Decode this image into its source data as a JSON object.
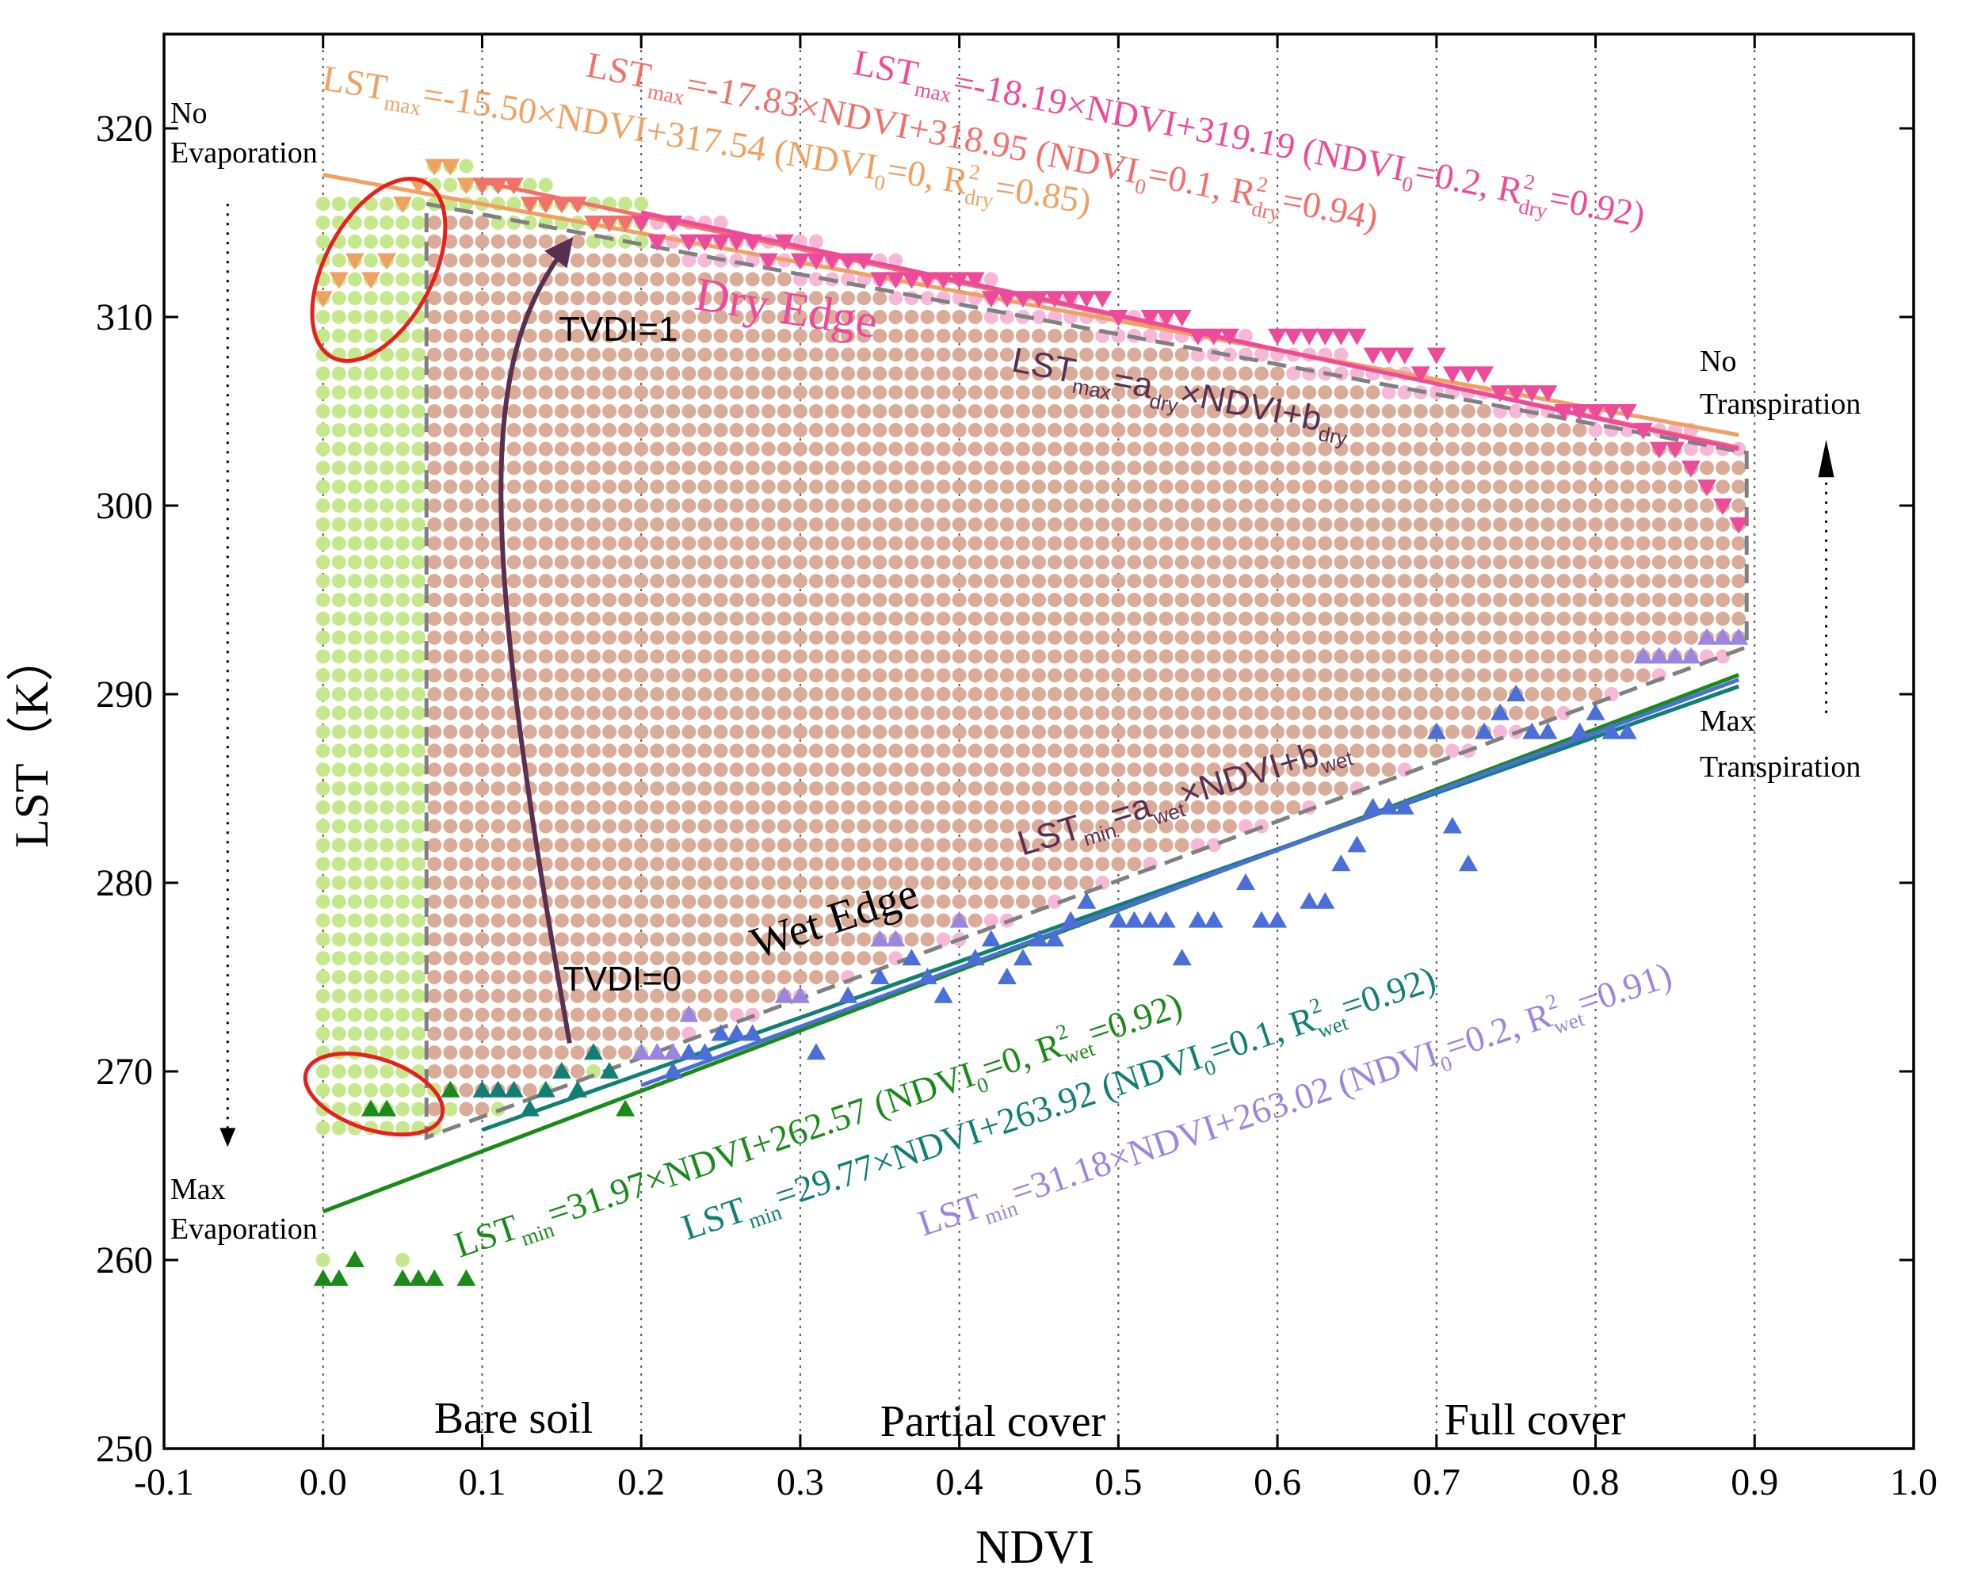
{
  "chart_data": {
    "type": "scatter",
    "title": "",
    "xlabel": "NDVI",
    "ylabel": "LST（K）",
    "xlim": [
      -0.1,
      1.0
    ],
    "ylim": [
      250,
      325
    ],
    "xticks": [
      -0.1,
      0.0,
      0.1,
      0.2,
      0.3,
      0.4,
      0.5,
      0.6,
      0.7,
      0.8,
      0.9,
      1.0
    ],
    "xtick_labels": [
      "-0.1",
      "0.0",
      "0.1",
      "0.2",
      "0.3",
      "0.4",
      "0.5",
      "0.6",
      "0.7",
      "0.8",
      "0.9",
      "1.0"
    ],
    "yticks": [
      250,
      260,
      270,
      280,
      290,
      300,
      310,
      320
    ],
    "ytick_labels": [
      "250",
      "260",
      "270",
      "280",
      "290",
      "300",
      "310",
      "320"
    ],
    "vertical_gridlines_at": [
      0.0,
      0.1,
      0.2,
      0.3,
      0.4,
      0.5,
      0.6,
      0.7,
      0.8,
      0.9
    ],
    "colors": {
      "green_points": "#c5e88c",
      "pink_region": "#f7b7d6",
      "tan_region": "#d9ab98",
      "orange": "#f0a060",
      "red": "#f2706a",
      "magenta": "#ee4a9a",
      "green": "#1a8a1a",
      "teal": "#127f74",
      "blue": "#4a6fd8",
      "purple": "#9a86e0",
      "arrow": "#5a3050",
      "ellipse": "#e8201c",
      "dashed": "#808080"
    },
    "dry_edges": [
      {
        "name": "NDVI0=0",
        "slope": -15.5,
        "intercept": 317.54,
        "x_range": [
          0.0,
          0.89
        ],
        "color": "orange",
        "r2": 0.85
      },
      {
        "name": "NDVI0=0.1",
        "slope": -17.83,
        "intercept": 318.95,
        "x_range": [
          0.1,
          0.89
        ],
        "color": "red",
        "r2": 0.94
      },
      {
        "name": "NDVI0=0.2",
        "slope": -18.19,
        "intercept": 319.19,
        "x_range": [
          0.2,
          0.89
        ],
        "color": "magenta",
        "r2": 0.92
      }
    ],
    "wet_edges": [
      {
        "name": "NDVI0=0",
        "slope": 31.97,
        "intercept": 262.57,
        "x_range": [
          0.0,
          0.89
        ],
        "color": "green",
        "r2": 0.92
      },
      {
        "name": "NDVI0=0.1",
        "slope": 29.77,
        "intercept": 263.92,
        "x_range": [
          0.1,
          0.89
        ],
        "color": "teal",
        "r2": 0.92
      },
      {
        "name": "NDVI0=0.2",
        "slope": 31.18,
        "intercept": 263.02,
        "x_range": [
          0.2,
          0.89
        ],
        "color": "blue",
        "r2": 0.91
      }
    ],
    "triangle_region_dashed": [
      [
        0.065,
        316
      ],
      [
        0.895,
        302.8
      ],
      [
        0.895,
        292.5
      ],
      [
        0.065,
        266.5
      ]
    ],
    "dry_points": [
      {
        "x": 0.0,
        "y": 311,
        "c": "orange"
      },
      {
        "x": 0.01,
        "y": 312,
        "c": "orange"
      },
      {
        "x": 0.02,
        "y": 313,
        "c": "orange"
      },
      {
        "x": 0.03,
        "y": 312,
        "c": "orange"
      },
      {
        "x": 0.04,
        "y": 313,
        "c": "orange"
      },
      {
        "x": 0.05,
        "y": 316,
        "c": "orange"
      },
      {
        "x": 0.06,
        "y": 317,
        "c": "orange"
      },
      {
        "x": 0.07,
        "y": 318,
        "c": "orange"
      },
      {
        "x": 0.08,
        "y": 318,
        "c": "orange"
      },
      {
        "x": 0.09,
        "y": 317,
        "c": "orange"
      },
      {
        "x": 0.1,
        "y": 317,
        "c": "red"
      },
      {
        "x": 0.11,
        "y": 317,
        "c": "red"
      },
      {
        "x": 0.12,
        "y": 317,
        "c": "red"
      },
      {
        "x": 0.13,
        "y": 316,
        "c": "red"
      },
      {
        "x": 0.14,
        "y": 316,
        "c": "red"
      },
      {
        "x": 0.15,
        "y": 316,
        "c": "red"
      },
      {
        "x": 0.16,
        "y": 316,
        "c": "red"
      },
      {
        "x": 0.17,
        "y": 315,
        "c": "red"
      },
      {
        "x": 0.18,
        "y": 315,
        "c": "red"
      },
      {
        "x": 0.19,
        "y": 315,
        "c": "red"
      },
      {
        "x": 0.2,
        "y": 315,
        "c": "magenta"
      },
      {
        "x": 0.21,
        "y": 314,
        "c": "magenta"
      },
      {
        "x": 0.22,
        "y": 315,
        "c": "magenta"
      },
      {
        "x": 0.23,
        "y": 314,
        "c": "magenta"
      },
      {
        "x": 0.24,
        "y": 314,
        "c": "magenta"
      },
      {
        "x": 0.25,
        "y": 314,
        "c": "magenta"
      },
      {
        "x": 0.26,
        "y": 314,
        "c": "magenta"
      },
      {
        "x": 0.27,
        "y": 314,
        "c": "magenta"
      },
      {
        "x": 0.28,
        "y": 313,
        "c": "magenta"
      },
      {
        "x": 0.29,
        "y": 314,
        "c": "magenta"
      },
      {
        "x": 0.3,
        "y": 313,
        "c": "magenta"
      },
      {
        "x": 0.31,
        "y": 313,
        "c": "magenta"
      },
      {
        "x": 0.32,
        "y": 313,
        "c": "magenta"
      },
      {
        "x": 0.33,
        "y": 313,
        "c": "magenta"
      },
      {
        "x": 0.34,
        "y": 313,
        "c": "magenta"
      },
      {
        "x": 0.35,
        "y": 312,
        "c": "magenta"
      },
      {
        "x": 0.36,
        "y": 312,
        "c": "magenta"
      },
      {
        "x": 0.37,
        "y": 312,
        "c": "magenta"
      },
      {
        "x": 0.38,
        "y": 312,
        "c": "magenta"
      },
      {
        "x": 0.39,
        "y": 312,
        "c": "magenta"
      },
      {
        "x": 0.4,
        "y": 312,
        "c": "magenta"
      },
      {
        "x": 0.41,
        "y": 312,
        "c": "magenta"
      },
      {
        "x": 0.42,
        "y": 311,
        "c": "magenta"
      },
      {
        "x": 0.43,
        "y": 311,
        "c": "magenta"
      },
      {
        "x": 0.44,
        "y": 311,
        "c": "magenta"
      },
      {
        "x": 0.45,
        "y": 311,
        "c": "magenta"
      },
      {
        "x": 0.46,
        "y": 311,
        "c": "magenta"
      },
      {
        "x": 0.47,
        "y": 311,
        "c": "magenta"
      },
      {
        "x": 0.48,
        "y": 311,
        "c": "magenta"
      },
      {
        "x": 0.49,
        "y": 311,
        "c": "magenta"
      },
      {
        "x": 0.5,
        "y": 310,
        "c": "magenta"
      },
      {
        "x": 0.52,
        "y": 310,
        "c": "magenta"
      },
      {
        "x": 0.53,
        "y": 310,
        "c": "magenta"
      },
      {
        "x": 0.54,
        "y": 310,
        "c": "magenta"
      },
      {
        "x": 0.55,
        "y": 309,
        "c": "magenta"
      },
      {
        "x": 0.56,
        "y": 309,
        "c": "magenta"
      },
      {
        "x": 0.57,
        "y": 309,
        "c": "magenta"
      },
      {
        "x": 0.6,
        "y": 309,
        "c": "magenta"
      },
      {
        "x": 0.61,
        "y": 309,
        "c": "magenta"
      },
      {
        "x": 0.62,
        "y": 309,
        "c": "magenta"
      },
      {
        "x": 0.63,
        "y": 309,
        "c": "magenta"
      },
      {
        "x": 0.64,
        "y": 309,
        "c": "magenta"
      },
      {
        "x": 0.65,
        "y": 309,
        "c": "magenta"
      },
      {
        "x": 0.66,
        "y": 308,
        "c": "magenta"
      },
      {
        "x": 0.67,
        "y": 308,
        "c": "magenta"
      },
      {
        "x": 0.68,
        "y": 308,
        "c": "magenta"
      },
      {
        "x": 0.69,
        "y": 307,
        "c": "magenta"
      },
      {
        "x": 0.7,
        "y": 308,
        "c": "magenta"
      },
      {
        "x": 0.71,
        "y": 307,
        "c": "magenta"
      },
      {
        "x": 0.72,
        "y": 307,
        "c": "magenta"
      },
      {
        "x": 0.73,
        "y": 307,
        "c": "magenta"
      },
      {
        "x": 0.74,
        "y": 306,
        "c": "magenta"
      },
      {
        "x": 0.75,
        "y": 306,
        "c": "magenta"
      },
      {
        "x": 0.76,
        "y": 306,
        "c": "magenta"
      },
      {
        "x": 0.77,
        "y": 306,
        "c": "magenta"
      },
      {
        "x": 0.78,
        "y": 305,
        "c": "magenta"
      },
      {
        "x": 0.79,
        "y": 305,
        "c": "magenta"
      },
      {
        "x": 0.8,
        "y": 305,
        "c": "magenta"
      },
      {
        "x": 0.81,
        "y": 305,
        "c": "magenta"
      },
      {
        "x": 0.82,
        "y": 305,
        "c": "magenta"
      },
      {
        "x": 0.83,
        "y": 304,
        "c": "magenta"
      },
      {
        "x": 0.84,
        "y": 303,
        "c": "magenta"
      },
      {
        "x": 0.85,
        "y": 303,
        "c": "magenta"
      },
      {
        "x": 0.86,
        "y": 302,
        "c": "magenta"
      },
      {
        "x": 0.87,
        "y": 301,
        "c": "magenta"
      },
      {
        "x": 0.88,
        "y": 300,
        "c": "magenta"
      },
      {
        "x": 0.89,
        "y": 299,
        "c": "magenta"
      }
    ],
    "wet_points": [
      {
        "x": 0.0,
        "y": 259,
        "c": "green"
      },
      {
        "x": 0.01,
        "y": 259,
        "c": "green"
      },
      {
        "x": 0.02,
        "y": 260,
        "c": "green"
      },
      {
        "x": 0.03,
        "y": 268,
        "c": "green"
      },
      {
        "x": 0.04,
        "y": 268,
        "c": "green"
      },
      {
        "x": 0.05,
        "y": 259,
        "c": "green"
      },
      {
        "x": 0.06,
        "y": 259,
        "c": "green"
      },
      {
        "x": 0.07,
        "y": 259,
        "c": "green"
      },
      {
        "x": 0.08,
        "y": 269,
        "c": "green"
      },
      {
        "x": 0.09,
        "y": 259,
        "c": "green"
      },
      {
        "x": 0.19,
        "y": 268,
        "c": "green"
      },
      {
        "x": 0.1,
        "y": 269,
        "c": "teal"
      },
      {
        "x": 0.11,
        "y": 269,
        "c": "teal"
      },
      {
        "x": 0.12,
        "y": 269,
        "c": "teal"
      },
      {
        "x": 0.13,
        "y": 268,
        "c": "teal"
      },
      {
        "x": 0.14,
        "y": 269,
        "c": "teal"
      },
      {
        "x": 0.15,
        "y": 270,
        "c": "teal"
      },
      {
        "x": 0.16,
        "y": 269,
        "c": "teal"
      },
      {
        "x": 0.17,
        "y": 271,
        "c": "teal"
      },
      {
        "x": 0.18,
        "y": 270,
        "c": "teal"
      },
      {
        "x": 0.2,
        "y": 271,
        "c": "purple"
      },
      {
        "x": 0.21,
        "y": 271,
        "c": "purple"
      },
      {
        "x": 0.22,
        "y": 271,
        "c": "purple"
      },
      {
        "x": 0.23,
        "y": 273,
        "c": "purple"
      },
      {
        "x": 0.29,
        "y": 274,
        "c": "purple"
      },
      {
        "x": 0.3,
        "y": 274,
        "c": "purple"
      },
      {
        "x": 0.35,
        "y": 277,
        "c": "purple"
      },
      {
        "x": 0.36,
        "y": 277,
        "c": "purple"
      },
      {
        "x": 0.4,
        "y": 278,
        "c": "purple"
      },
      {
        "x": 0.83,
        "y": 292,
        "c": "purple"
      },
      {
        "x": 0.84,
        "y": 292,
        "c": "purple"
      },
      {
        "x": 0.85,
        "y": 292,
        "c": "purple"
      },
      {
        "x": 0.86,
        "y": 292,
        "c": "purple"
      },
      {
        "x": 0.87,
        "y": 293,
        "c": "purple"
      },
      {
        "x": 0.88,
        "y": 293,
        "c": "purple"
      },
      {
        "x": 0.89,
        "y": 293,
        "c": "purple"
      },
      {
        "x": 0.22,
        "y": 270,
        "c": "blue"
      },
      {
        "x": 0.23,
        "y": 271,
        "c": "blue"
      },
      {
        "x": 0.24,
        "y": 271,
        "c": "blue"
      },
      {
        "x": 0.25,
        "y": 272,
        "c": "blue"
      },
      {
        "x": 0.26,
        "y": 272,
        "c": "blue"
      },
      {
        "x": 0.27,
        "y": 272,
        "c": "blue"
      },
      {
        "x": 0.31,
        "y": 271,
        "c": "blue"
      },
      {
        "x": 0.33,
        "y": 274,
        "c": "blue"
      },
      {
        "x": 0.35,
        "y": 275,
        "c": "blue"
      },
      {
        "x": 0.37,
        "y": 276,
        "c": "blue"
      },
      {
        "x": 0.38,
        "y": 275,
        "c": "blue"
      },
      {
        "x": 0.39,
        "y": 274,
        "c": "blue"
      },
      {
        "x": 0.41,
        "y": 276,
        "c": "blue"
      },
      {
        "x": 0.42,
        "y": 277,
        "c": "blue"
      },
      {
        "x": 0.43,
        "y": 275,
        "c": "blue"
      },
      {
        "x": 0.44,
        "y": 276,
        "c": "blue"
      },
      {
        "x": 0.45,
        "y": 277,
        "c": "blue"
      },
      {
        "x": 0.46,
        "y": 277,
        "c": "blue"
      },
      {
        "x": 0.47,
        "y": 278,
        "c": "blue"
      },
      {
        "x": 0.48,
        "y": 279,
        "c": "blue"
      },
      {
        "x": 0.5,
        "y": 278,
        "c": "blue"
      },
      {
        "x": 0.51,
        "y": 278,
        "c": "blue"
      },
      {
        "x": 0.52,
        "y": 278,
        "c": "blue"
      },
      {
        "x": 0.53,
        "y": 278,
        "c": "blue"
      },
      {
        "x": 0.54,
        "y": 276,
        "c": "blue"
      },
      {
        "x": 0.55,
        "y": 278,
        "c": "blue"
      },
      {
        "x": 0.56,
        "y": 278,
        "c": "blue"
      },
      {
        "x": 0.58,
        "y": 280,
        "c": "blue"
      },
      {
        "x": 0.59,
        "y": 278,
        "c": "blue"
      },
      {
        "x": 0.6,
        "y": 278,
        "c": "blue"
      },
      {
        "x": 0.62,
        "y": 279,
        "c": "blue"
      },
      {
        "x": 0.63,
        "y": 279,
        "c": "blue"
      },
      {
        "x": 0.64,
        "y": 281,
        "c": "blue"
      },
      {
        "x": 0.65,
        "y": 282,
        "c": "blue"
      },
      {
        "x": 0.66,
        "y": 284,
        "c": "blue"
      },
      {
        "x": 0.67,
        "y": 284,
        "c": "blue"
      },
      {
        "x": 0.68,
        "y": 284,
        "c": "blue"
      },
      {
        "x": 0.7,
        "y": 288,
        "c": "blue"
      },
      {
        "x": 0.71,
        "y": 283,
        "c": "blue"
      },
      {
        "x": 0.72,
        "y": 281,
        "c": "blue"
      },
      {
        "x": 0.73,
        "y": 288,
        "c": "blue"
      },
      {
        "x": 0.74,
        "y": 289,
        "c": "blue"
      },
      {
        "x": 0.75,
        "y": 290,
        "c": "blue"
      },
      {
        "x": 0.76,
        "y": 288,
        "c": "blue"
      },
      {
        "x": 0.77,
        "y": 288,
        "c": "blue"
      },
      {
        "x": 0.79,
        "y": 288,
        "c": "blue"
      },
      {
        "x": 0.8,
        "y": 289,
        "c": "blue"
      },
      {
        "x": 0.81,
        "y": 288,
        "c": "blue"
      },
      {
        "x": 0.82,
        "y": 288,
        "c": "blue"
      }
    ],
    "equations": {
      "dry_orange": {
        "main": "LST",
        "sub": "max",
        "text": "=-15.50×NDVI+317.54 (NDVI",
        "sub2": "0",
        "text2": "=0, R",
        "sup": "2",
        "sub3": "dry",
        "text3": "=0.85)"
      },
      "dry_red": {
        "main": "LST",
        "sub": "max",
        "text": "=-17.83×NDVI+318.95 (NDVI",
        "sub2": "0",
        "text2": "=0.1, R",
        "sup": "2",
        "sub3": "dry",
        "text3": "=0.94)"
      },
      "dry_magenta": {
        "main": "LST",
        "sub": "max",
        "text": "=-18.19×NDVI+319.19 (NDVI",
        "sub2": "0",
        "text2": "=0.2, R",
        "sup": "2",
        "sub3": "dry",
        "text3": "=0.92)"
      },
      "wet_green": {
        "main": "LST",
        "sub": "min",
        "text": "=31.97×NDVI+262.57 (NDVI",
        "sub2": "0",
        "text2": "=0, R",
        "sup": "2",
        "sub3": "wet",
        "text3": "=0.92)"
      },
      "wet_teal": {
        "main": "LST",
        "sub": "min",
        "text": "=29.77×NDVI+263.92 (NDVI",
        "sub2": "0",
        "text2": "=0.1, R",
        "sup": "2",
        "sub3": "wet",
        "text3": "=0.92)"
      },
      "wet_blue": {
        "main": "LST",
        "sub": "min",
        "text": "=31.18×NDVI+263.02 (NDVI",
        "sub2": "0",
        "text2": "=0.2, R",
        "sup": "2",
        "sub3": "wet",
        "text3": "=0.91)"
      },
      "dry_general": {
        "main": "LST",
        "sub": "max",
        "text": "=a",
        "sub2": "dry",
        "text2": "×NDVI+b",
        "sub3": "dry"
      },
      "wet_general": {
        "main": "LST",
        "sub": "min",
        "text": "=a",
        "sub2": "wet",
        "text2": "×NDVI+b",
        "sub3": "wet"
      }
    },
    "annotations": {
      "dry_edge": "Dry Edge",
      "wet_edge": "Wet Edge",
      "tvdi1": "TVDI=1",
      "tvdi0": "TVDI=0",
      "no_evaporation_1": "No",
      "no_evaporation_2": "Evaporation",
      "max_evaporation_1": "Max",
      "max_evaporation_2": "Evaporation",
      "no_transpiration_1": "No",
      "no_transpiration_2": "Transpiration",
      "max_transpiration_1": "Max",
      "max_transpiration_2": "Transpiration",
      "bare_soil": "Bare soil",
      "partial_cover": "Partial cover",
      "full_cover": "Full cover"
    }
  }
}
